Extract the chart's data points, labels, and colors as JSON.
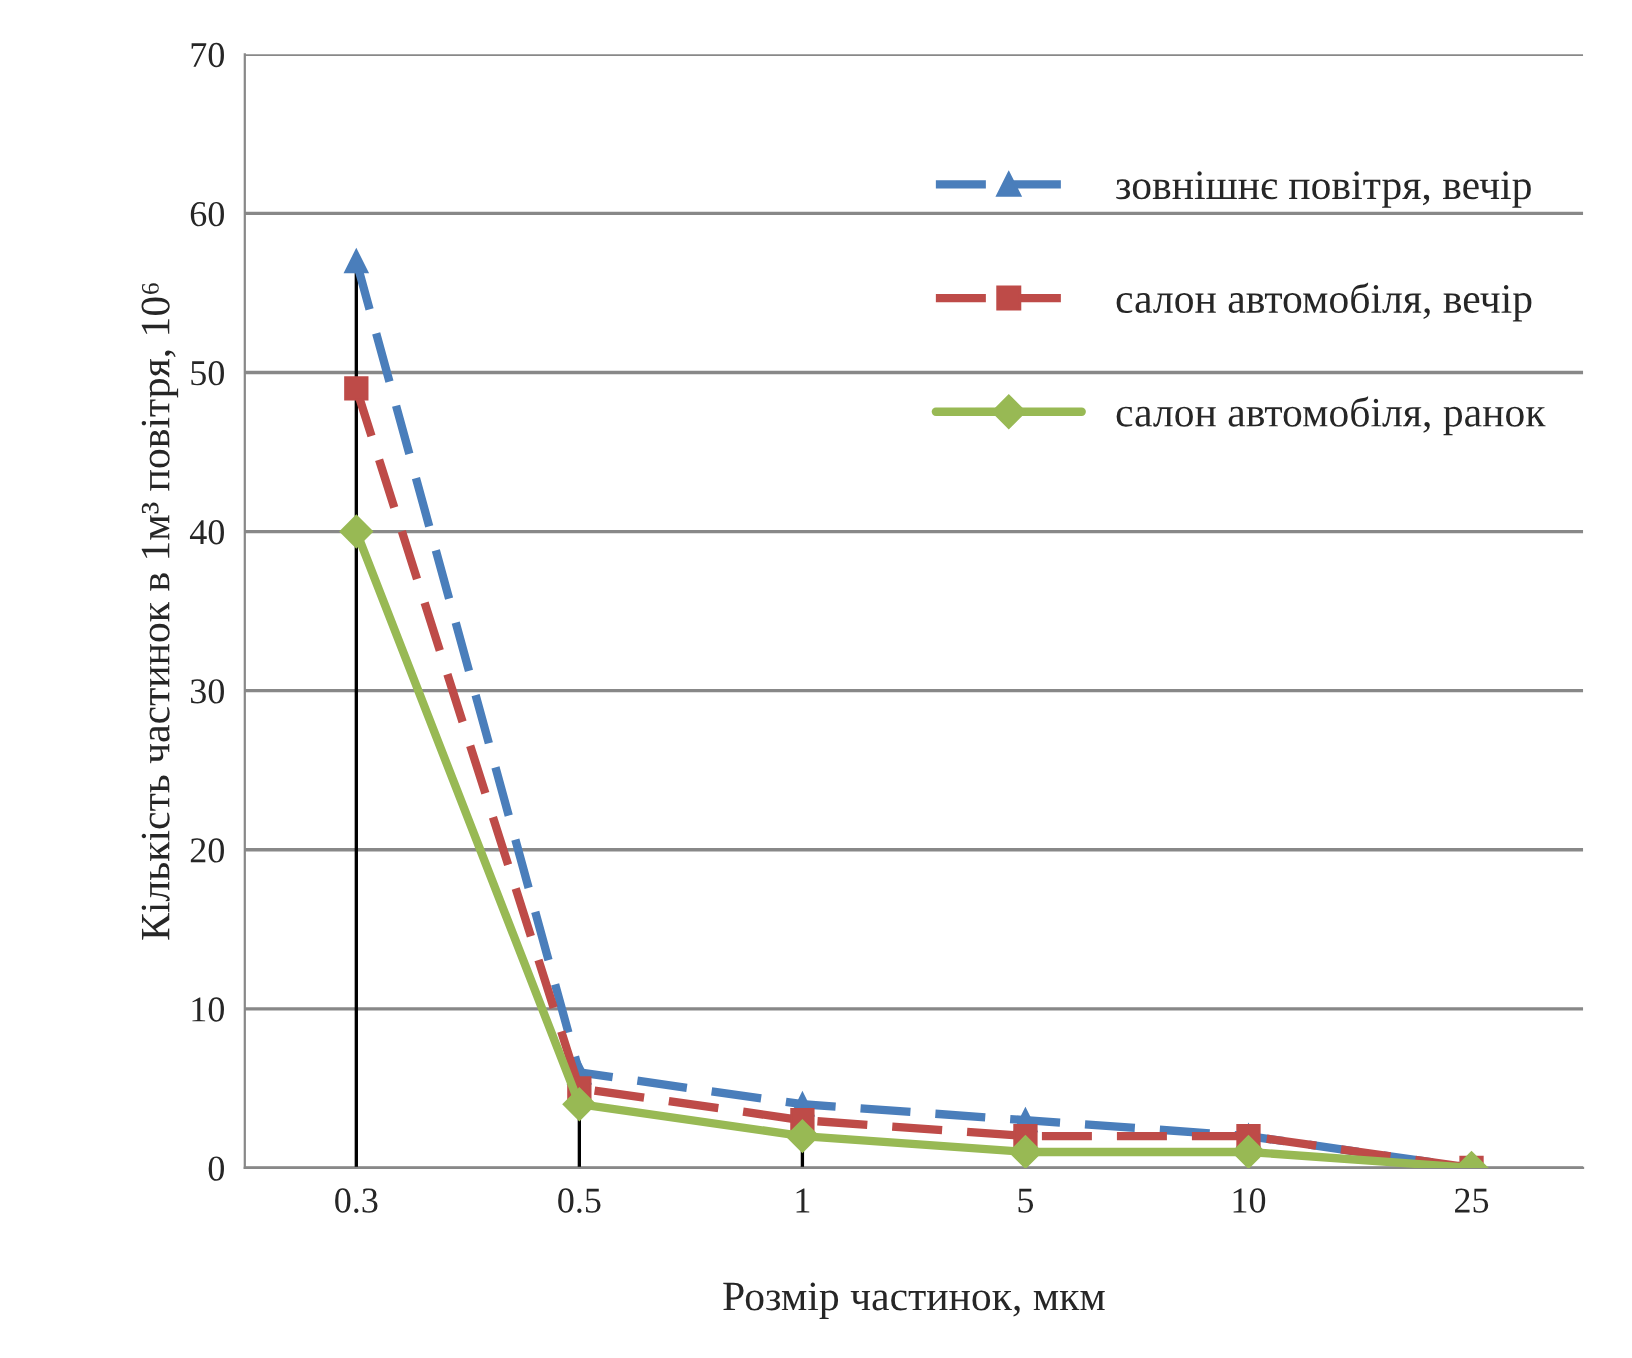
{
  "chart_data": {
    "type": "line",
    "xlabel": "Розмір частинок, мкм",
    "ylabel": "Кількість частинок в 1м³ повітря, 10⁶",
    "categories": [
      "0.3",
      "0.5",
      "1",
      "5",
      "10",
      "25"
    ],
    "series": [
      {
        "name": "зовнішнє повітря, вечір",
        "color": "#4a7ebb",
        "values": [
          57,
          6,
          4,
          3,
          2,
          0
        ],
        "errors": [
          [
            0,
            57
          ],
          [
            0,
            6
          ],
          [
            0,
            4
          ],
          [
            0,
            3
          ],
          [
            0,
            2
          ],
          [
            0,
            0
          ]
        ],
        "marker": "triangle",
        "line_style": "dashed"
      },
      {
        "name": "салон автомобіля, вечір",
        "color": "#be4b48",
        "values": [
          49,
          5,
          3,
          2,
          2,
          0
        ],
        "marker": "square",
        "line_style": "dashed"
      },
      {
        "name": "салон автомобіля, ранок",
        "color": "#98b954",
        "values": [
          40,
          4,
          2,
          1,
          1,
          0
        ],
        "marker": "diamond",
        "line_style": "solid"
      }
    ],
    "ylim": [
      0,
      70
    ],
    "yticks": [
      0,
      10,
      20,
      30,
      40,
      50,
      60,
      70
    ],
    "grid": "y",
    "legend": "top right"
  }
}
